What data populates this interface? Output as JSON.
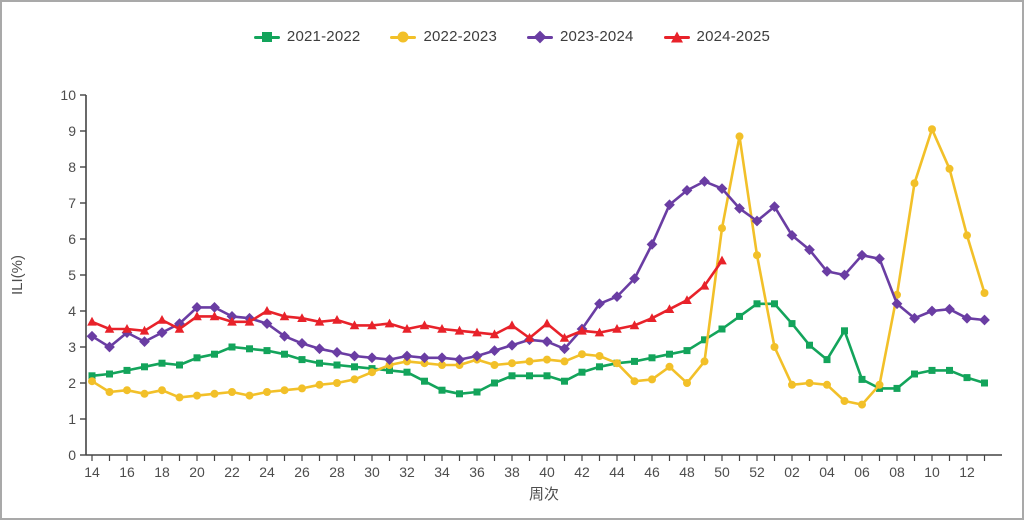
{
  "frame": {
    "background": "#ffffff",
    "border_color": "#a9a9a9"
  },
  "legend": {
    "items": [
      {
        "label": "2021-2022",
        "marker": "square",
        "color": "#13A45B"
      },
      {
        "label": "2022-2023",
        "marker": "circle",
        "color": "#F2C029"
      },
      {
        "label": "2023-2024",
        "marker": "diamond",
        "color": "#6A3DA3"
      },
      {
        "label": "2024-2025",
        "marker": "triangle",
        "color": "#E8222A"
      }
    ]
  },
  "chart_data": {
    "type": "line",
    "title": "",
    "xlabel": "周次",
    "ylabel": "ILI(%)",
    "ylim": [
      0,
      10
    ],
    "y_ticks": [
      0,
      1,
      2,
      3,
      4,
      5,
      6,
      7,
      8,
      9,
      10
    ],
    "grid": false,
    "legend_position": "top",
    "categories": [
      "14",
      "15",
      "16",
      "17",
      "18",
      "19",
      "20",
      "21",
      "22",
      "23",
      "24",
      "25",
      "26",
      "27",
      "28",
      "29",
      "30",
      "31",
      "32",
      "33",
      "34",
      "35",
      "36",
      "37",
      "38",
      "39",
      "40",
      "41",
      "42",
      "43",
      "44",
      "45",
      "46",
      "47",
      "48",
      "49",
      "50",
      "51",
      "52",
      "01",
      "02",
      "03",
      "04",
      "05",
      "06",
      "07",
      "08",
      "09",
      "10",
      "11",
      "12",
      "13"
    ],
    "x_tick_labels_shown": [
      "14",
      "16",
      "18",
      "20",
      "22",
      "24",
      "26",
      "28",
      "30",
      "32",
      "34",
      "36",
      "38",
      "40",
      "42",
      "44",
      "46",
      "48",
      "50",
      "52",
      "02",
      "04",
      "06",
      "08",
      "10",
      "12"
    ],
    "series": [
      {
        "name": "2021-2022",
        "color": "#13A45B",
        "marker": "square",
        "values": [
          2.2,
          2.25,
          2.35,
          2.45,
          2.55,
          2.5,
          2.7,
          2.8,
          3.0,
          2.95,
          2.9,
          2.8,
          2.65,
          2.55,
          2.5,
          2.45,
          2.4,
          2.35,
          2.3,
          2.05,
          1.8,
          1.7,
          1.75,
          2.0,
          2.2,
          2.2,
          2.2,
          2.05,
          2.3,
          2.45,
          2.55,
          2.6,
          2.7,
          2.8,
          2.9,
          3.2,
          3.5,
          3.85,
          4.2,
          4.2,
          3.65,
          3.05,
          2.65,
          3.45,
          2.1,
          1.85,
          1.85,
          2.25,
          2.35,
          2.35,
          2.15,
          2.0
        ]
      },
      {
        "name": "2022-2023",
        "color": "#F2C029",
        "marker": "circle",
        "values": [
          2.05,
          1.75,
          1.8,
          1.7,
          1.8,
          1.6,
          1.65,
          1.7,
          1.75,
          1.65,
          1.75,
          1.8,
          1.85,
          1.95,
          2.0,
          2.1,
          2.3,
          2.5,
          2.6,
          2.55,
          2.5,
          2.5,
          2.65,
          2.5,
          2.55,
          2.6,
          2.65,
          2.6,
          2.8,
          2.75,
          2.55,
          2.05,
          2.1,
          2.45,
          2.0,
          2.6,
          6.3,
          8.85,
          5.55,
          3.0,
          1.95,
          2.0,
          1.95,
          1.5,
          1.4,
          1.95,
          4.45,
          7.55,
          9.05,
          7.95,
          6.1,
          4.5
        ]
      },
      {
        "name": "2023-2024",
        "color": "#6A3DA3",
        "marker": "diamond",
        "values": [
          3.3,
          3.0,
          3.4,
          3.15,
          3.4,
          3.65,
          4.1,
          4.1,
          3.85,
          3.8,
          3.65,
          3.3,
          3.1,
          2.95,
          2.85,
          2.75,
          2.7,
          2.65,
          2.75,
          2.7,
          2.7,
          2.65,
          2.75,
          2.9,
          3.05,
          3.2,
          3.15,
          2.95,
          3.5,
          4.2,
          4.4,
          4.9,
          5.85,
          6.95,
          7.35,
          7.6,
          7.4,
          6.85,
          6.5,
          6.9,
          6.1,
          5.7,
          5.1,
          5.0,
          5.55,
          5.45,
          4.2,
          3.8,
          4.0,
          4.05,
          3.8,
          3.75
        ]
      },
      {
        "name": "2024-2025",
        "color": "#E8222A",
        "marker": "triangle",
        "values": [
          3.7,
          3.5,
          3.5,
          3.45,
          3.75,
          3.5,
          3.85,
          3.85,
          3.7,
          3.7,
          4.0,
          3.85,
          3.8,
          3.7,
          3.75,
          3.6,
          3.6,
          3.65,
          3.5,
          3.6,
          3.5,
          3.45,
          3.4,
          3.35,
          3.6,
          3.25,
          3.65,
          3.25,
          3.45,
          3.4,
          3.5,
          3.6,
          3.8,
          4.05,
          4.3,
          4.7,
          5.4,
          null,
          null,
          null,
          null,
          null,
          null,
          null,
          null,
          null,
          null,
          null,
          null,
          null,
          null,
          null
        ]
      }
    ]
  }
}
